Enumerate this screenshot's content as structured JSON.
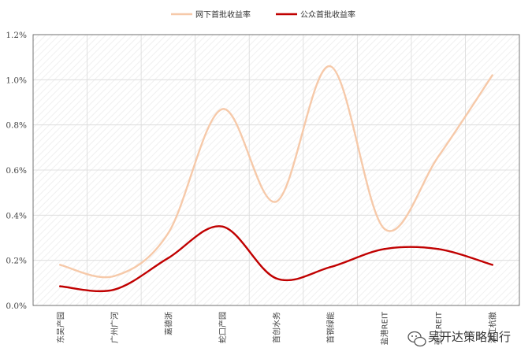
{
  "chart_data": {
    "type": "line",
    "categories": [
      "东吴产园",
      "广州广河",
      "嘉德浙",
      "蛇口产园",
      "首创水务",
      "首钢绿能",
      "盐港REIT",
      "张江REIT",
      "浙江杭徽"
    ],
    "series": [
      {
        "name": "网下首批收益率",
        "color": "#f6c9a9",
        "values": [
          0.18,
          0.13,
          0.32,
          0.87,
          0.46,
          1.06,
          0.34,
          0.66,
          1.02
        ]
      },
      {
        "name": "公众首批收益率",
        "color": "#c00000",
        "values": [
          0.085,
          0.07,
          0.21,
          0.35,
          0.12,
          0.17,
          0.25,
          0.25,
          0.18
        ]
      }
    ],
    "ylim": [
      0,
      1.2
    ],
    "yticks": [
      "0.0%",
      "0.2%",
      "0.4%",
      "0.6%",
      "0.8%",
      "1.0%",
      "1.2%"
    ],
    "grid": true,
    "legend_position": "top-center"
  },
  "watermark": {
    "icon": "wechat-icon",
    "text": "吴开达策略知行"
  }
}
